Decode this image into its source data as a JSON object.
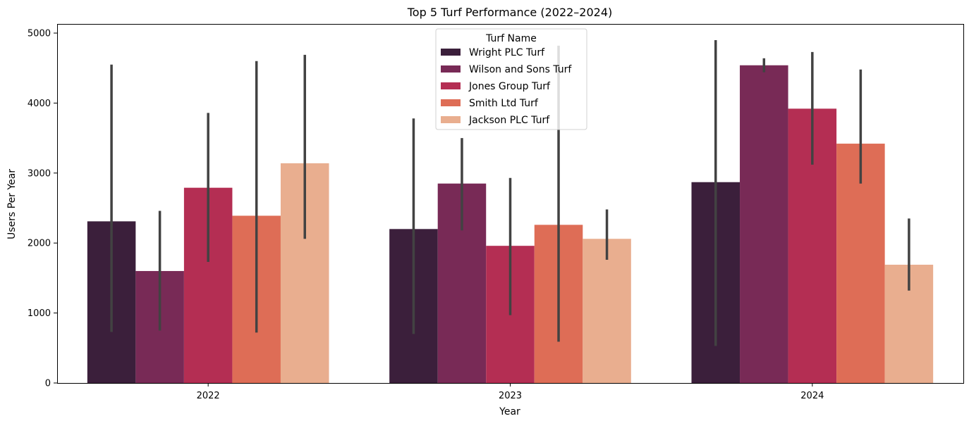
{
  "chart_data": {
    "type": "bar",
    "title": "Top 5 Turf Performance (2022–2024)",
    "xlabel": "Year",
    "ylabel": "Users Per Year",
    "categories": [
      "2022",
      "2023",
      "2024"
    ],
    "ylim": [
      0,
      5000
    ],
    "yticks": [
      0,
      1000,
      2000,
      3000,
      4000,
      5000
    ],
    "grid": false,
    "legend": {
      "title": "Turf Name",
      "placement": "top-center"
    },
    "series": [
      {
        "name": "Wright PLC Turf",
        "color": "#3b1f3b",
        "values": [
          2310,
          2200,
          2870
        ],
        "err_low": [
          730,
          700,
          530
        ],
        "err_high": [
          4550,
          3780,
          4900
        ]
      },
      {
        "name": "Wilson and Sons Turf",
        "color": "#782a56",
        "values": [
          1600,
          2850,
          4540
        ],
        "err_low": [
          750,
          2180,
          4440
        ],
        "err_high": [
          2460,
          3500,
          4640
        ]
      },
      {
        "name": "Jones Group Turf",
        "color": "#b42e53",
        "values": [
          2790,
          1960,
          3920
        ],
        "err_low": [
          1730,
          970,
          3120
        ],
        "err_high": [
          3860,
          2930,
          4730
        ]
      },
      {
        "name": "Smith Ltd Turf",
        "color": "#de6d56",
        "values": [
          2390,
          2260,
          3420
        ],
        "err_low": [
          720,
          590,
          2850
        ],
        "err_high": [
          4600,
          4820,
          4480
        ]
      },
      {
        "name": "Jackson PLC Turf",
        "color": "#e9ae8f",
        "values": [
          3140,
          2060,
          1690
        ],
        "err_low": [
          2060,
          1760,
          1320
        ],
        "err_high": [
          4690,
          2480,
          2350
        ]
      }
    ]
  }
}
